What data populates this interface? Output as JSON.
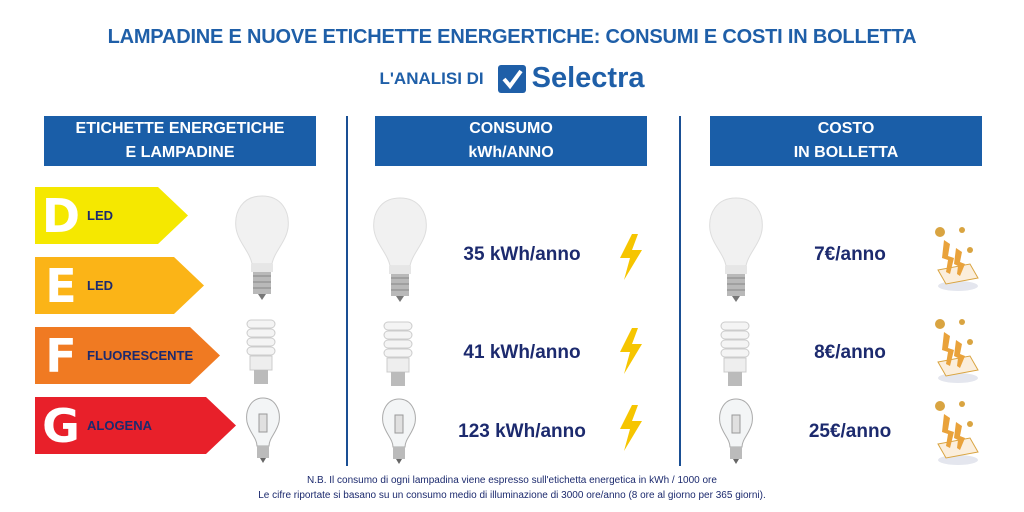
{
  "title": "LAMPADINE E NUOVE ETICHETTE ENERGERTICHE: CONSUMI E COSTI IN BOLLETTA",
  "subtitle": "L'ANALISI DI",
  "logo_text": "Selectra",
  "headers": [
    {
      "line1": "ETICHETTE ENERGETICHE",
      "line2": "E LAMPADINE"
    },
    {
      "line1": "CONSUMO",
      "line2": "kWh/ANNO"
    },
    {
      "line1": "COSTO",
      "line2": "IN BOLLETTA"
    }
  ],
  "labels": [
    {
      "letter": "D",
      "name": "LED",
      "color": "#f5e800"
    },
    {
      "letter": "E",
      "name": "LED",
      "color": "#fbb417"
    },
    {
      "letter": "F",
      "name": "FLUORESCENTE",
      "color": "#f07a22"
    },
    {
      "letter": "G",
      "name": "ALOGENA",
      "color": "#e8202a"
    }
  ],
  "rows": [
    {
      "bulb": "led-bulb",
      "consumption": "35 kWh/anno",
      "cost": "7€/anno"
    },
    {
      "bulb": "fluorescent-bulb",
      "consumption": "41 kWh/anno",
      "cost": "8€/anno"
    },
    {
      "bulb": "halogen-bulb",
      "consumption": "123 kWh/anno",
      "cost": "25€/anno"
    }
  ],
  "notes": [
    "N.B. Il consumo di ogni lampadina viene espresso sull'etichetta energetica in kWh / 1000 ore",
    "Le cifre riportate si basano su un consumo medio di illuminazione di 3000 ore/anno (8 ore al giorno per 365 giorni)."
  ],
  "colors": {
    "brand_blue": "#1a5ea8",
    "text_navy": "#1c2a6e",
    "lightning": "#f6c500"
  }
}
